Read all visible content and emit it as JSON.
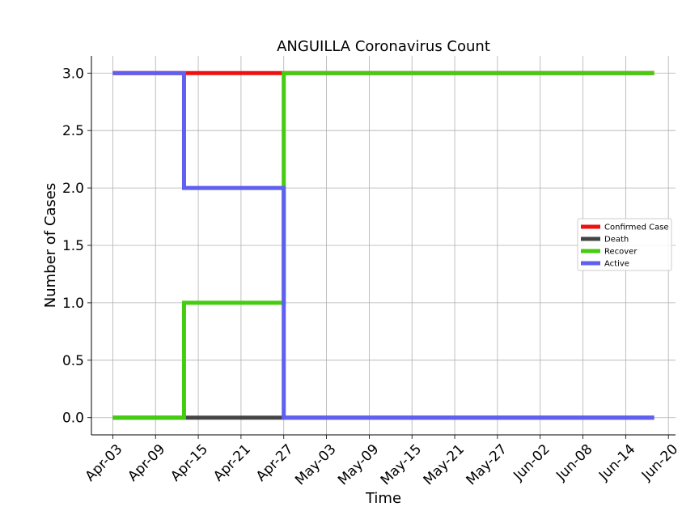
{
  "chart_data": {
    "type": "line",
    "title": "ANGUILLA Coronavirus Count",
    "xlabel": "Time",
    "ylabel": "Number of Cases",
    "x_start": "2020-04-03",
    "x_end": "2020-06-18",
    "xlim": [
      "2020-03-31",
      "2020-06-21"
    ],
    "ylim": [
      -0.15,
      3.15
    ],
    "x_ticks": [
      "Apr-03",
      "Apr-09",
      "Apr-15",
      "Apr-21",
      "Apr-27",
      "May-03",
      "May-09",
      "May-15",
      "May-21",
      "May-27",
      "Jun-02",
      "Jun-08",
      "Jun-14",
      "Jun-20"
    ],
    "y_ticks": [
      "0.0",
      "0.5",
      "1.0",
      "1.5",
      "2.0",
      "2.5",
      "3.0"
    ],
    "grid": true,
    "legend_position": "center-right",
    "step": true,
    "series": [
      {
        "name": "Confirmed Case",
        "color": "#ee1111",
        "points": [
          [
            "2020-04-03",
            3
          ],
          [
            "2020-06-18",
            3
          ]
        ]
      },
      {
        "name": "Death",
        "color": "#444444",
        "points": [
          [
            "2020-04-03",
            0
          ],
          [
            "2020-06-18",
            0
          ]
        ]
      },
      {
        "name": "Recover",
        "color": "#44cc11",
        "points": [
          [
            "2020-04-03",
            0
          ],
          [
            "2020-04-13",
            1
          ],
          [
            "2020-04-27",
            3
          ],
          [
            "2020-06-18",
            3
          ]
        ]
      },
      {
        "name": "Active",
        "color": "#5f5ff0",
        "points": [
          [
            "2020-04-03",
            3
          ],
          [
            "2020-04-13",
            2
          ],
          [
            "2020-04-27",
            0
          ],
          [
            "2020-06-18",
            0
          ]
        ]
      }
    ]
  }
}
